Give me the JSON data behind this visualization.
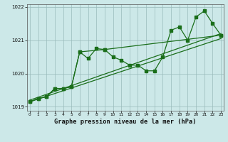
{
  "title": "Graphe pression niveau de la mer (hPa)",
  "bg_color": "#cce8e8",
  "grid_color": "#99bbbb",
  "line_color": "#1a6e1a",
  "x_min": 0,
  "x_max": 23,
  "y_min": 1019,
  "y_max": 1022,
  "y_ticks": [
    1019,
    1020,
    1021,
    1022
  ],
  "x_ticks": [
    0,
    1,
    2,
    3,
    4,
    5,
    6,
    7,
    8,
    9,
    10,
    11,
    12,
    13,
    14,
    15,
    16,
    17,
    18,
    19,
    20,
    21,
    22,
    23
  ],
  "series_main": [
    [
      0,
      1019.15
    ],
    [
      1,
      1019.25
    ],
    [
      2,
      1019.3
    ],
    [
      3,
      1019.55
    ],
    [
      4,
      1019.55
    ],
    [
      5,
      1019.6
    ],
    [
      6,
      1020.65
    ],
    [
      7,
      1020.45
    ],
    [
      8,
      1020.75
    ],
    [
      9,
      1020.72
    ],
    [
      10,
      1020.5
    ],
    [
      11,
      1020.4
    ],
    [
      12,
      1020.25
    ],
    [
      13,
      1020.25
    ],
    [
      14,
      1020.08
    ],
    [
      15,
      1020.08
    ],
    [
      16,
      1020.5
    ],
    [
      17,
      1021.3
    ],
    [
      18,
      1021.4
    ],
    [
      19,
      1021.0
    ],
    [
      20,
      1021.7
    ],
    [
      21,
      1021.88
    ],
    [
      22,
      1021.5
    ],
    [
      23,
      1021.15
    ]
  ],
  "series_lower_trend": [
    [
      0,
      1019.15
    ],
    [
      23,
      1021.05
    ]
  ],
  "series_upper_trend": [
    [
      0,
      1019.2
    ],
    [
      23,
      1021.2
    ]
  ],
  "series_short": [
    [
      0,
      1019.15
    ],
    [
      1,
      1019.25
    ],
    [
      2,
      1019.3
    ],
    [
      3,
      1019.55
    ],
    [
      4,
      1019.55
    ],
    [
      5,
      1019.6
    ],
    [
      6,
      1020.65
    ],
    [
      9,
      1020.72
    ],
    [
      23,
      1021.15
    ]
  ]
}
